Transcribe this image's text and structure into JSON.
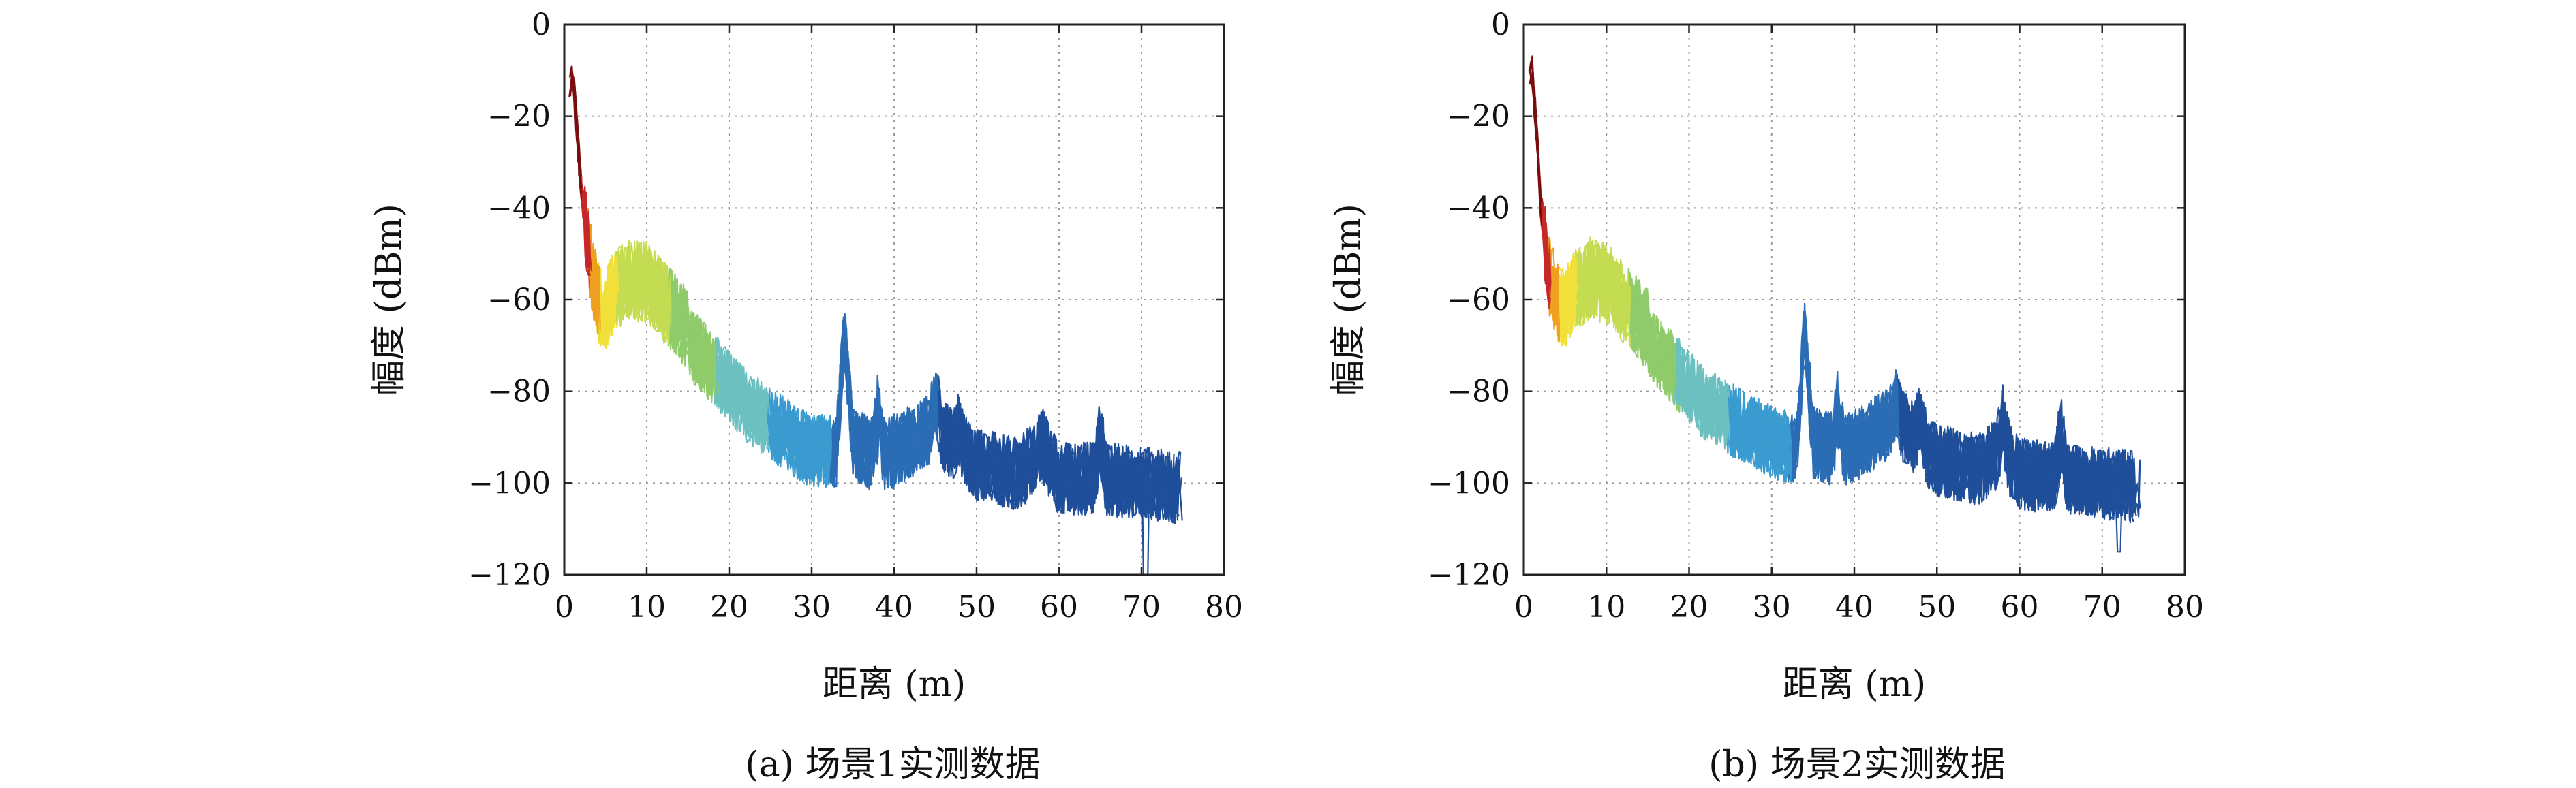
{
  "figure": {
    "caption_a": "(a) 场景1实测数据",
    "caption_b": "(b) 场景2实测数据"
  },
  "chart_data": [
    {
      "type": "line",
      "panel": "a",
      "title": "",
      "xlabel": "距离 (m)",
      "ylabel": "幅度 (dBm)",
      "xlim": [
        0,
        80
      ],
      "ylim": [
        -120,
        0
      ],
      "xticks": [
        0,
        10,
        20,
        30,
        40,
        50,
        60,
        70,
        80
      ],
      "yticks": [
        0,
        -20,
        -40,
        -60,
        -80,
        -100,
        -120
      ],
      "ytick_labels": [
        "0",
        "−20",
        "−40",
        "−60",
        "−80",
        "−100",
        "−120"
      ],
      "grid": true,
      "grid_style": "dotted",
      "colormap": [
        "#7a0d0d",
        "#c62828",
        "#f0a020",
        "#f2e03a",
        "#c4dc52",
        "#8fcb6a",
        "#6cc0c0",
        "#3a9bd0",
        "#2a6db5",
        "#1f4e9a"
      ],
      "envelope": {
        "x": [
          0.5,
          1,
          1.5,
          2,
          3,
          4,
          5,
          6,
          8,
          10,
          12,
          15,
          18,
          20,
          22,
          25,
          28,
          30,
          33,
          34,
          35,
          38,
          40,
          45,
          50,
          55,
          58,
          60,
          65,
          70,
          75
        ],
        "y": [
          -15,
          -10,
          -22,
          -35,
          -50,
          -60,
          -62,
          -58,
          -55,
          -56,
          -60,
          -66,
          -72,
          -76,
          -80,
          -84,
          -88,
          -90,
          -90,
          -65,
          -88,
          -92,
          -90,
          -85,
          -93,
          -95,
          -90,
          -96,
          -96,
          -97,
          -98
        ]
      },
      "peaks": [
        {
          "x": 34,
          "y": -63
        },
        {
          "x": 38,
          "y": -80
        },
        {
          "x": 45,
          "y": -77
        },
        {
          "x": 48,
          "y": -84
        },
        {
          "x": 58,
          "y": -88
        },
        {
          "x": 65,
          "y": -86
        }
      ],
      "min_x": 70.5,
      "min_y": -120
    },
    {
      "type": "line",
      "panel": "b",
      "title": "",
      "xlabel": "距离 (m)",
      "ylabel": "幅度 (dBm)",
      "xlim": [
        0,
        80
      ],
      "ylim": [
        -120,
        0
      ],
      "xticks": [
        0,
        10,
        20,
        30,
        40,
        50,
        60,
        70,
        80
      ],
      "yticks": [
        0,
        -20,
        -40,
        -60,
        -80,
        -100,
        -120
      ],
      "ytick_labels": [
        "0",
        "−20",
        "−40",
        "−60",
        "−80",
        "−100",
        "−120"
      ],
      "grid": true,
      "grid_style": "dotted",
      "colormap": [
        "#7a0d0d",
        "#c62828",
        "#f0a020",
        "#f2e03a",
        "#c4dc52",
        "#8fcb6a",
        "#6cc0c0",
        "#3a9bd0",
        "#2a6db5",
        "#1f4e9a"
      ],
      "envelope": {
        "x": [
          0.5,
          1,
          1.5,
          2,
          3,
          4,
          5,
          6,
          8,
          10,
          12,
          15,
          18,
          20,
          22,
          25,
          28,
          30,
          33,
          34,
          35,
          38,
          40,
          45,
          50,
          55,
          58,
          60,
          65,
          70,
          75
        ],
        "y": [
          -14,
          -10,
          -22,
          -38,
          -54,
          -60,
          -62,
          -58,
          -55,
          -56,
          -60,
          -66,
          -72,
          -76,
          -80,
          -83,
          -86,
          -88,
          -90,
          -63,
          -88,
          -90,
          -89,
          -83,
          -92,
          -94,
          -90,
          -95,
          -96,
          -97,
          -98
        ]
      },
      "peaks": [
        {
          "x": 34,
          "y": -63
        },
        {
          "x": 38,
          "y": -80
        },
        {
          "x": 45,
          "y": -78
        },
        {
          "x": 48,
          "y": -80
        },
        {
          "x": 58,
          "y": -83
        },
        {
          "x": 65,
          "y": -84
        }
      ],
      "min_x": 72,
      "min_y": -115
    }
  ]
}
